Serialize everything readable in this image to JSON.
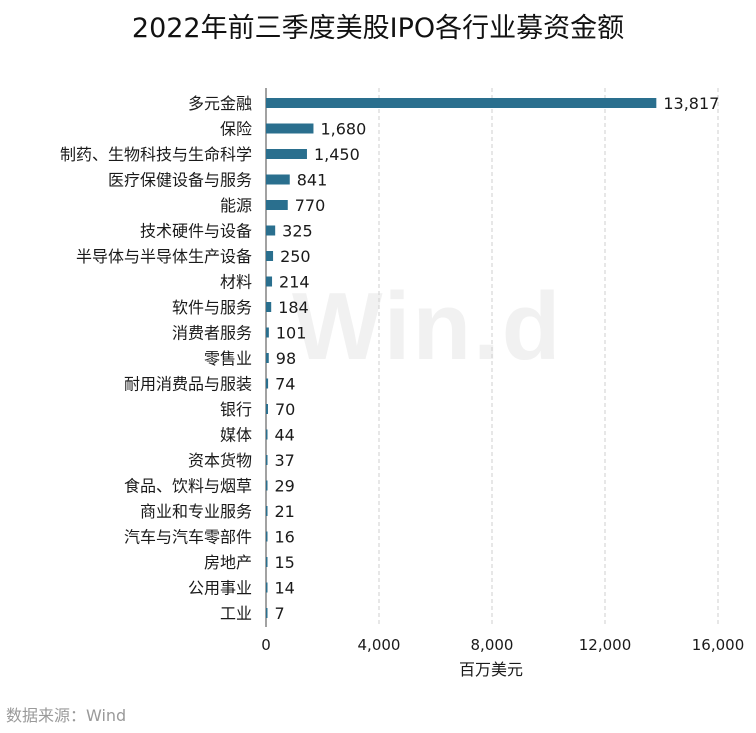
{
  "title": "2022年前三季度美股IPO各行业募资金额",
  "watermark": "Win.d",
  "source": "数据来源：Wind",
  "colors": {
    "bar": "#2a6f8e",
    "text": "#1a1a1a",
    "grid": "#cfcfcf",
    "axis": "#444444"
  },
  "chart_data": {
    "type": "bar",
    "orientation": "horizontal",
    "title": "2022年前三季度美股IPO各行业募资金额",
    "xlabel": "百万美元",
    "ylabel": "",
    "xlim": [
      0,
      16000
    ],
    "xticks": [
      0,
      4000,
      8000,
      12000,
      16000
    ],
    "xtick_labels": [
      "0",
      "4,000",
      "8,000",
      "12,000",
      "16,000"
    ],
    "grid": "vertical dashed",
    "categories": [
      "多元金融",
      "保险",
      "制药、生物科技与生命科学",
      "医疗保健设备与服务",
      "能源",
      "技术硬件与设备",
      "半导体与半导体生产设备",
      "材料",
      "软件与服务",
      "消费者服务",
      "零售业",
      "耐用消费品与服装",
      "银行",
      "媒体",
      "资本货物",
      "食品、饮料与烟草",
      "商业和专业服务",
      "汽车与汽车零部件",
      "房地产",
      "公用事业",
      "工业"
    ],
    "values": [
      13817,
      1680,
      1450,
      841,
      770,
      325,
      250,
      214,
      184,
      101,
      98,
      74,
      70,
      44,
      37,
      29,
      21,
      16,
      15,
      14,
      7
    ],
    "value_labels": [
      "13,817",
      "1,680",
      "1,450",
      "841",
      "770",
      "325",
      "250",
      "214",
      "184",
      "101",
      "98",
      "74",
      "70",
      "44",
      "37",
      "29",
      "21",
      "16",
      "15",
      "14",
      "7"
    ]
  }
}
